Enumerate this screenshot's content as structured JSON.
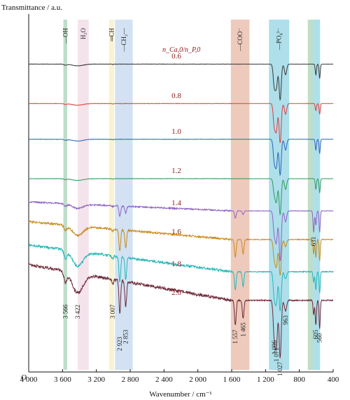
{
  "chart_data": {
    "type": "line",
    "xlabel": "Wavenumber / cm⁻¹",
    "ylabel": "Transmittance / a.u.",
    "y_origin_label": "O",
    "xlim": [
      4000,
      400
    ],
    "x_reversed": true,
    "x_ticks": [
      4000,
      3600,
      3200,
      2800,
      2400,
      2000,
      1600,
      1200,
      800,
      400
    ],
    "x_tick_labels": [
      "4 000",
      "3 600",
      "3 200",
      "2 800",
      "2 400",
      "2 000",
      "1 600",
      "1 200",
      "800",
      "400"
    ],
    "grid": false,
    "legend_title": "n_Ca,0/n_P,0",
    "bands": [
      {
        "label": "—OH",
        "from": 3590,
        "to": 3545,
        "color": "#a8d3b8"
      },
      {
        "label": "H₂O",
        "from": 3420,
        "to": 3290,
        "color": "#f2d9e6"
      },
      {
        "label": "═CH",
        "from": 3050,
        "to": 2990,
        "color": "#f5efc0"
      },
      {
        "label": "—CH₂—",
        "from": 2980,
        "to": 2770,
        "color": "#c3d8ef"
      },
      {
        "label": "—COO⁻",
        "from": 1610,
        "to": 1390,
        "color": "#e8b8a6"
      },
      {
        "label": "—PO₄³⁻",
        "from": 1160,
        "to": 920,
        "color": "#93d4e4"
      },
      {
        "label": "",
        "from": 700,
        "to": 640,
        "color": "#a8d3b8"
      },
      {
        "label": "",
        "from": 640,
        "to": 555,
        "color": "#93d4e4"
      }
    ],
    "series": [
      {
        "name": "0.6",
        "color": "#3a3a3a",
        "baseline": 0.14,
        "peaks": [
          [
            2923,
            0.0
          ],
          [
            2853,
            0.0
          ],
          [
            1557,
            0.0
          ],
          [
            1465,
            0.0
          ],
          [
            1096,
            0.06
          ],
          [
            1071,
            0.06
          ],
          [
            1027,
            0.1
          ],
          [
            963,
            0.03
          ],
          [
            631,
            0.0
          ],
          [
            605,
            0.03
          ],
          [
            560,
            0.04
          ]
        ]
      },
      {
        "name": "0.8",
        "color": "#e03c3c",
        "baseline": 0.25,
        "peaks": [
          [
            2923,
            0.0
          ],
          [
            2853,
            0.0
          ],
          [
            1557,
            0.0
          ],
          [
            1465,
            0.0
          ],
          [
            1096,
            0.06
          ],
          [
            1071,
            0.07
          ],
          [
            1027,
            0.11
          ],
          [
            963,
            0.03
          ],
          [
            631,
            0.0
          ],
          [
            605,
            0.02
          ],
          [
            560,
            0.03
          ]
        ]
      },
      {
        "name": "1.0",
        "color": "#2b65b8",
        "baseline": 0.35,
        "peaks": [
          [
            2923,
            0.0
          ],
          [
            2853,
            0.0
          ],
          [
            1557,
            0.0
          ],
          [
            1465,
            0.0
          ],
          [
            1096,
            0.06
          ],
          [
            1071,
            0.07
          ],
          [
            1027,
            0.1
          ],
          [
            963,
            0.03
          ],
          [
            631,
            0.0
          ],
          [
            605,
            0.03
          ],
          [
            560,
            0.04
          ]
        ]
      },
      {
        "name": "1.2",
        "color": "#2e9a5c",
        "baseline": 0.46,
        "peaks": [
          [
            2923,
            0.0
          ],
          [
            2853,
            0.0
          ],
          [
            1557,
            0.0
          ],
          [
            1465,
            0.0
          ],
          [
            1096,
            0.04
          ],
          [
            1071,
            0.06
          ],
          [
            1027,
            0.1
          ],
          [
            963,
            0.03
          ],
          [
            631,
            0.0
          ],
          [
            605,
            0.03
          ],
          [
            560,
            0.04
          ]
        ]
      },
      {
        "name": "1.4",
        "color": "#8e63c4",
        "baseline": 0.55,
        "peaks": [
          [
            2923,
            0.03
          ],
          [
            2853,
            0.02
          ],
          [
            1557,
            0.02
          ],
          [
            1465,
            0.01
          ],
          [
            1096,
            0.06
          ],
          [
            1071,
            0.08
          ],
          [
            1027,
            0.14
          ],
          [
            963,
            0.03
          ],
          [
            631,
            0.06
          ],
          [
            605,
            0.04
          ],
          [
            560,
            0.06
          ]
        ]
      },
      {
        "name": "1.6",
        "color": "#c98a1a",
        "baseline": 0.63,
        "peaks": [
          [
            2923,
            0.06
          ],
          [
            2853,
            0.05
          ],
          [
            1557,
            0.05
          ],
          [
            1465,
            0.04
          ],
          [
            1096,
            0.05
          ],
          [
            1071,
            0.07
          ],
          [
            1027,
            0.1
          ],
          [
            963,
            0.02
          ],
          [
            631,
            0.04
          ],
          [
            605,
            0.05
          ],
          [
            560,
            0.06
          ]
        ]
      },
      {
        "name": "1.8",
        "color": "#25b8b8",
        "baseline": 0.72,
        "peaks": [
          [
            2923,
            0.07
          ],
          [
            2853,
            0.06
          ],
          [
            1557,
            0.05
          ],
          [
            1465,
            0.04
          ],
          [
            1096,
            0.07
          ],
          [
            1071,
            0.08
          ],
          [
            1027,
            0.11
          ],
          [
            963,
            0.02
          ],
          [
            631,
            0.03
          ],
          [
            605,
            0.05
          ],
          [
            560,
            0.06
          ]
        ]
      },
      {
        "name": "2.0",
        "color": "#6e2a3a",
        "baseline": 0.8,
        "peaks": [
          [
            2923,
            0.09
          ],
          [
            2853,
            0.07
          ],
          [
            1557,
            0.07
          ],
          [
            1465,
            0.05
          ],
          [
            1096,
            0.1
          ],
          [
            1071,
            0.12
          ],
          [
            1027,
            0.16
          ],
          [
            963,
            0.03
          ],
          [
            631,
            0.04
          ],
          [
            605,
            0.07
          ],
          [
            560,
            0.08
          ]
        ]
      }
    ],
    "peak_labels": [
      {
        "label": "3 566",
        "x": 3566,
        "series": "2.0"
      },
      {
        "label": "3 422",
        "x": 3422,
        "series": "2.0"
      },
      {
        "label": "3 007",
        "x": 3007,
        "series": "2.0"
      },
      {
        "label": "2 923",
        "x": 2923,
        "series": "2.0"
      },
      {
        "label": "2 853",
        "x": 2853,
        "series": "2.0"
      },
      {
        "label": "1 557",
        "x": 1557,
        "series": "2.0"
      },
      {
        "label": "1 465",
        "x": 1465,
        "series": "2.0"
      },
      {
        "label": "1 096",
        "x": 1096,
        "series": "2.0"
      },
      {
        "label": "1 071",
        "x": 1071,
        "series": "2.0"
      },
      {
        "label": "1 027",
        "x": 1027,
        "series": "2.0"
      },
      {
        "label": "963",
        "x": 963,
        "series": "2.0"
      },
      {
        "label": "631",
        "x": 631,
        "series": "1.4"
      },
      {
        "label": "605",
        "x": 605,
        "series": "2.0"
      },
      {
        "label": "560",
        "x": 560,
        "series": "2.0"
      }
    ]
  }
}
